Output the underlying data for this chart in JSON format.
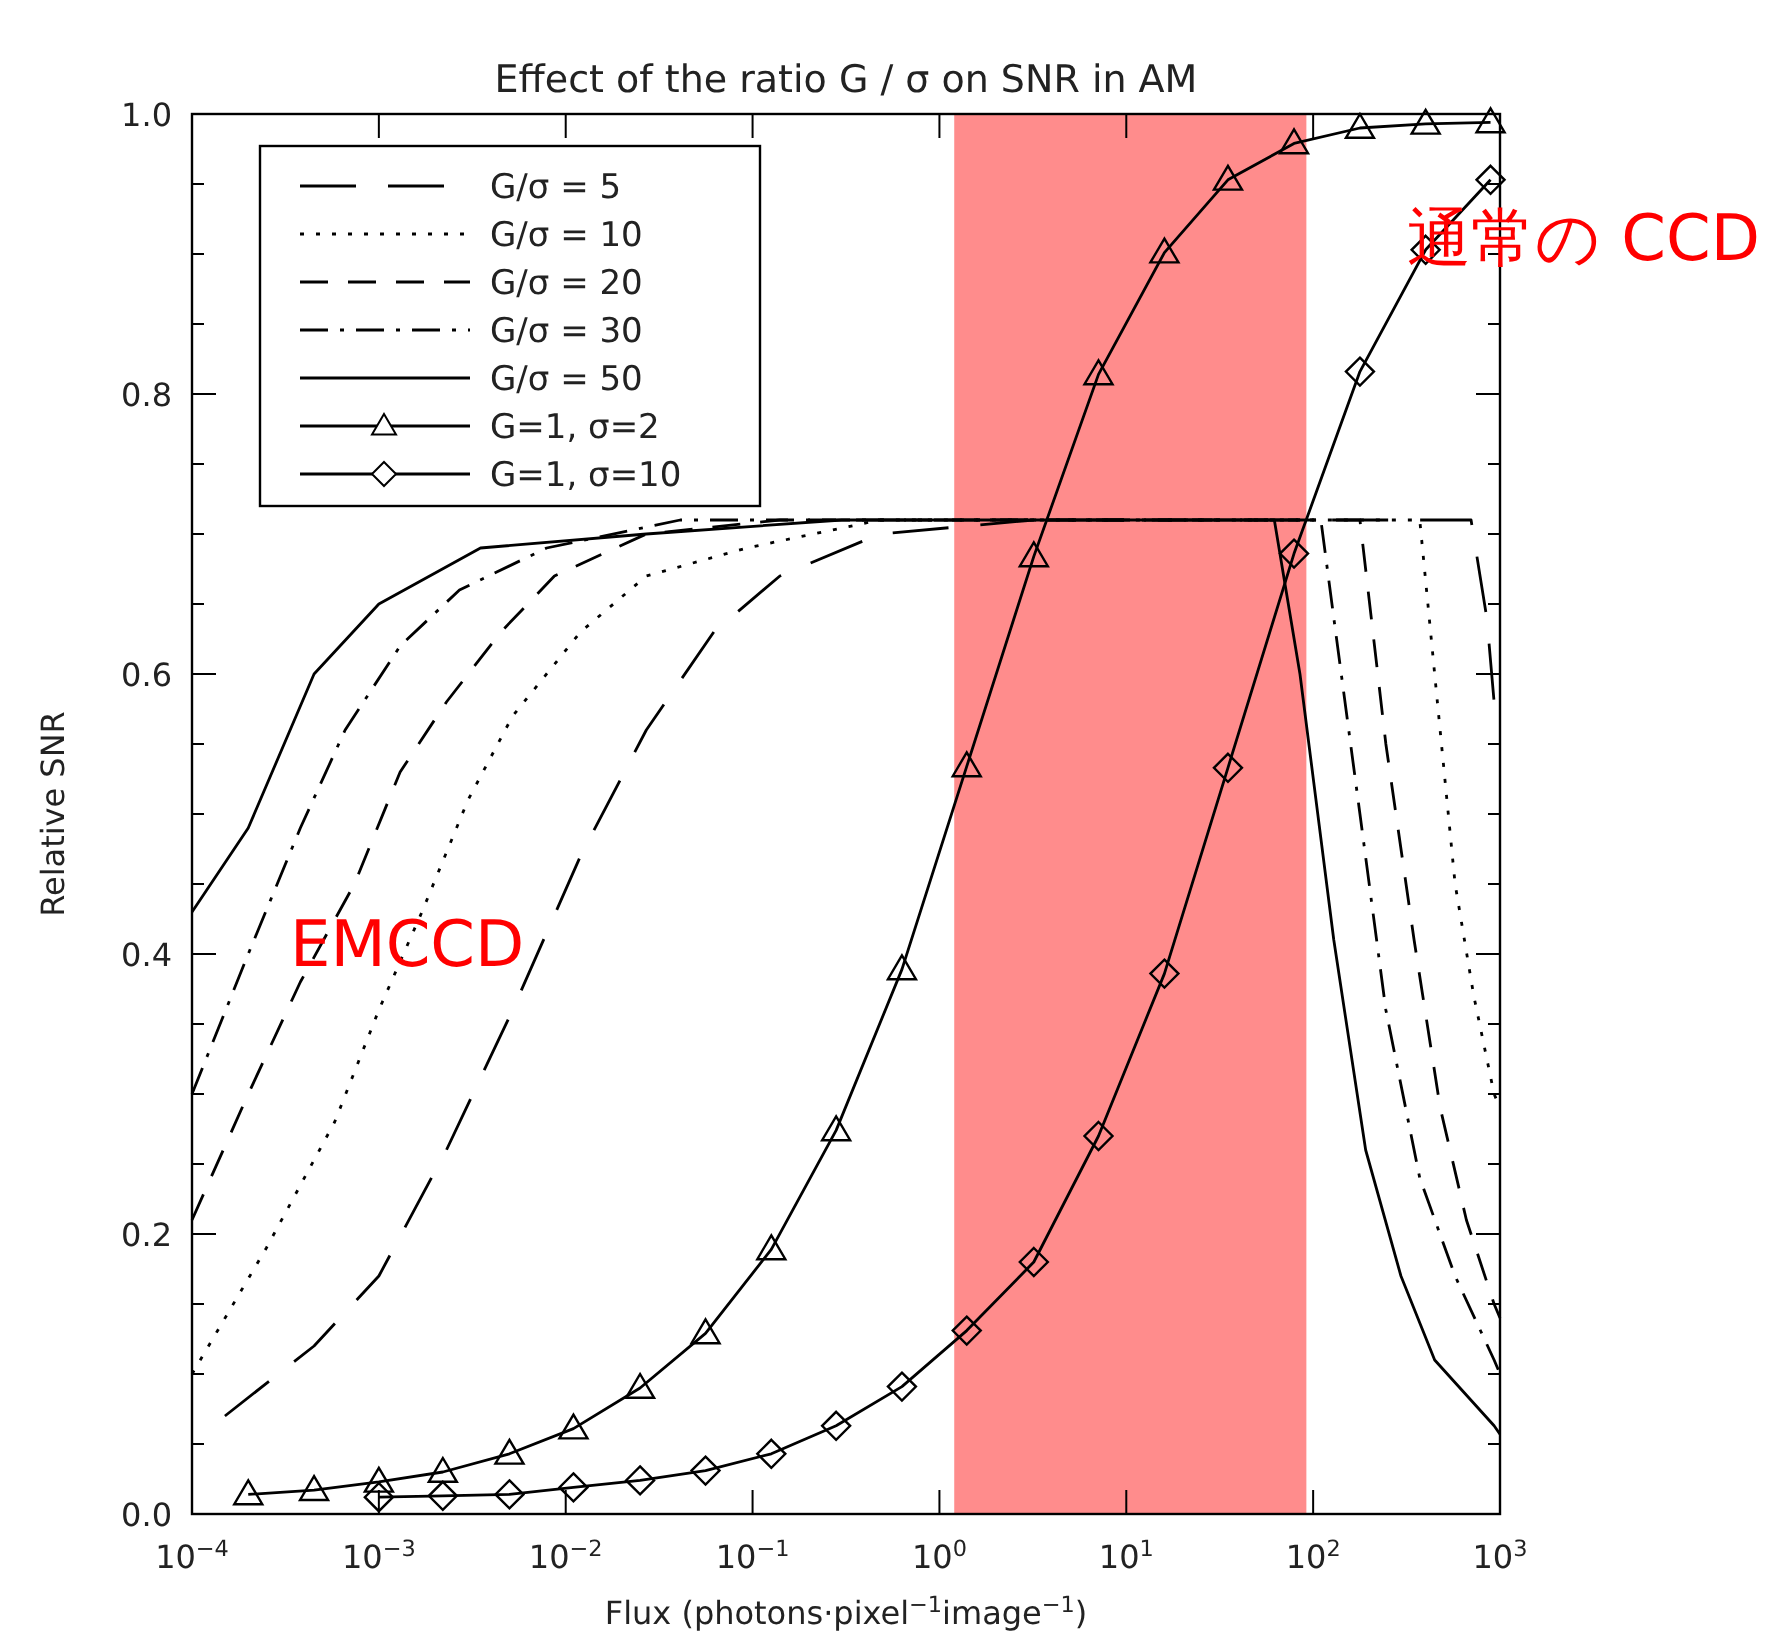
{
  "chart_data": {
    "type": "line",
    "title": "Effect of the ratio G / σ on SNR in AM",
    "xlabel": "Flux (photons·pixel$^{−1}$image$^{−1}$)",
    "ylabel": "Relative SNR",
    "log": "x",
    "xlim": [
      0.0001,
      1000
    ],
    "ylim": [
      0,
      1
    ],
    "xticks": [
      {
        "value": 0.0001,
        "label": "10$^{−4}$"
      },
      {
        "value": 0.001,
        "label": "10$^{−3}$"
      },
      {
        "value": 0.01,
        "label": "10$^{−2}$"
      },
      {
        "value": 0.1,
        "label": "10$^{−1}$"
      },
      {
        "value": 1,
        "label": "10$^{0}$"
      },
      {
        "value": 10,
        "label": "10$^{1}$"
      },
      {
        "value": 100,
        "label": "10$^{2}$"
      },
      {
        "value": 1000,
        "label": "10$^{3}$"
      }
    ],
    "yticks": [
      {
        "value": 0,
        "label": "0.0"
      },
      0.2,
      0.4,
      0.6,
      0.8,
      {
        "value": 1,
        "label": "1.0"
      }
    ],
    "grid": false,
    "legend": "top left",
    "series": [
      {
        "name": "G/σ = 5",
        "color": "#000000",
        "line_style": "longdash",
        "marker": "none",
        "x": [
          0.00015,
          0.00045,
          0.001,
          0.0023,
          0.0052,
          0.012,
          0.027,
          0.062,
          0.14,
          0.48,
          3.2,
          700,
          850,
          930,
          1000
        ],
        "values": [
          0.07,
          0.12,
          0.17,
          0.26,
          0.36,
          0.47,
          0.56,
          0.63,
          0.67,
          0.7,
          0.71,
          0.71,
          0.64,
          0.58,
          0.56
        ]
      },
      {
        "name": "G/σ = 10",
        "color": "#000000",
        "line_style": "dotted",
        "marker": "none",
        "x": [
          0.0001,
          0.00025,
          0.00058,
          0.001,
          0.0017,
          0.003,
          0.0052,
          0.012,
          0.027,
          0.093,
          0.48,
          2,
          372,
          447,
          575,
          724,
          930,
          1000
        ],
        "values": [
          0.1,
          0.19,
          0.28,
          0.36,
          0.43,
          0.51,
          0.57,
          0.63,
          0.67,
          0.69,
          0.71,
          0.71,
          0.71,
          0.6,
          0.45,
          0.37,
          0.3,
          0.29
        ]
      },
      {
        "name": "G/σ = 20",
        "color": "#000000",
        "line_style": "dashed",
        "marker": "none",
        "x": [
          0.0001,
          0.0002,
          0.00038,
          0.00074,
          0.0013,
          0.0023,
          0.0045,
          0.0087,
          0.027,
          0.14,
          1,
          178,
          245,
          347,
          479,
          661,
          930,
          1000
        ],
        "values": [
          0.21,
          0.3,
          0.38,
          0.45,
          0.53,
          0.58,
          0.63,
          0.67,
          0.7,
          0.71,
          0.71,
          0.71,
          0.55,
          0.41,
          0.29,
          0.21,
          0.15,
          0.14
        ]
      },
      {
        "name": "G/σ = 30",
        "color": "#000000",
        "line_style": "dashdot",
        "marker": "none",
        "x": [
          0.0001,
          0.0002,
          0.00038,
          0.00066,
          0.0013,
          0.0027,
          0.0079,
          0.041,
          1,
          110,
          129,
          178,
          245,
          372,
          575,
          930,
          1000
        ],
        "values": [
          0.3,
          0.4,
          0.49,
          0.56,
          0.62,
          0.66,
          0.69,
          0.71,
          0.71,
          0.71,
          0.64,
          0.5,
          0.36,
          0.24,
          0.17,
          0.11,
          0.1
        ]
      },
      {
        "name": "G/σ = 50",
        "color": "#000000",
        "line_style": "solid",
        "marker": "none",
        "x": [
          0.0001,
          0.0002,
          0.00045,
          0.001,
          0.0035,
          0.027,
          0.3,
          62,
          85,
          129,
          191,
          295,
          447,
          930,
          1000
        ],
        "values": [
          0.43,
          0.49,
          0.6,
          0.65,
          0.69,
          0.7,
          0.71,
          0.71,
          0.6,
          0.41,
          0.26,
          0.17,
          0.11,
          0.063,
          0.057
        ]
      },
      {
        "name": "G=1, σ=2",
        "color": "#000000",
        "line_style": "solid",
        "marker": "triangle",
        "x": [
          0.0002,
          0.00045,
          0.001,
          0.0022,
          0.005,
          0.011,
          0.025,
          0.056,
          0.126,
          0.28,
          0.63,
          1.4,
          3.2,
          7.1,
          16,
          35,
          79,
          178,
          400,
          890
        ],
        "values": [
          0.014,
          0.017,
          0.023,
          0.03,
          0.043,
          0.061,
          0.09,
          0.129,
          0.189,
          0.274,
          0.389,
          0.534,
          0.684,
          0.814,
          0.901,
          0.953,
          0.979,
          0.99,
          0.993,
          0.994
        ]
      },
      {
        "name": "G=1, σ=10",
        "color": "#000000",
        "line_style": "solid",
        "marker": "diamond",
        "x": [
          0.001,
          0.0022,
          0.005,
          0.011,
          0.025,
          0.056,
          0.126,
          0.28,
          0.63,
          1.4,
          3.2,
          7.1,
          16,
          35,
          79,
          178,
          400,
          890
        ],
        "values": [
          0.012,
          0.013,
          0.014,
          0.019,
          0.024,
          0.031,
          0.043,
          0.063,
          0.091,
          0.131,
          0.18,
          0.27,
          0.386,
          0.533,
          0.686,
          0.816,
          0.903,
          0.953
        ]
      }
    ],
    "bands": [
      {
        "axis": "x",
        "from": 1.2,
        "to": 92,
        "color": "#ff0000"
      }
    ],
    "annotations": [
      "EMCCD",
      "通常の CCD"
    ]
  }
}
